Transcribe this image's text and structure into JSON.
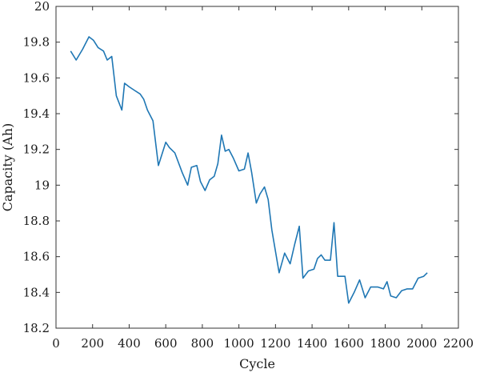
{
  "chart_data": {
    "type": "line",
    "title": "",
    "xlabel": "Cycle",
    "ylabel": "Capacity (Ah)",
    "xlim": [
      0,
      2200
    ],
    "ylim": [
      18.2,
      20
    ],
    "xticks": [
      0,
      200,
      400,
      600,
      800,
      1000,
      1200,
      1400,
      1600,
      1800,
      2000,
      2200
    ],
    "yticks": [
      18.2,
      18.4,
      18.6,
      18.8,
      19,
      19.2,
      19.4,
      19.6,
      19.8,
      20
    ],
    "ytick_labels": [
      "18.2",
      "18.4",
      "18.6",
      "18.8",
      "19",
      "19.2",
      "19.4",
      "19.6",
      "19.8",
      "20"
    ],
    "grid": false,
    "colors": {
      "line": "#1f77b4",
      "axis": "#333333"
    },
    "series": [
      {
        "x": [
          80,
          110,
          145,
          180,
          205,
          230,
          260,
          280,
          305,
          330,
          360,
          375,
          400,
          430,
          460,
          480,
          500,
          530,
          560,
          600,
          620,
          650,
          690,
          720,
          740,
          770,
          790,
          815,
          840,
          865,
          885,
          905,
          925,
          945,
          970,
          1000,
          1030,
          1050,
          1070,
          1095,
          1115,
          1140,
          1160,
          1180,
          1220,
          1250,
          1280,
          1305,
          1330,
          1350,
          1380,
          1410,
          1430,
          1450,
          1470,
          1500,
          1520,
          1540,
          1580,
          1600,
          1630,
          1660,
          1690,
          1720,
          1760,
          1790,
          1810,
          1830,
          1860,
          1890,
          1920,
          1950,
          1980,
          2010,
          2030
        ],
        "y": [
          19.75,
          19.7,
          19.76,
          19.83,
          19.81,
          19.77,
          19.75,
          19.7,
          19.72,
          19.5,
          19.42,
          19.57,
          19.55,
          19.53,
          19.51,
          19.48,
          19.42,
          19.36,
          19.11,
          19.24,
          19.21,
          19.18,
          19.07,
          19.0,
          19.1,
          19.11,
          19.02,
          18.97,
          19.03,
          19.05,
          19.12,
          19.28,
          19.19,
          19.2,
          19.15,
          19.08,
          19.09,
          19.18,
          19.07,
          18.9,
          18.95,
          18.99,
          18.92,
          18.75,
          18.51,
          18.62,
          18.56,
          18.67,
          18.77,
          18.48,
          18.52,
          18.53,
          18.59,
          18.61,
          18.58,
          18.58,
          18.79,
          18.49,
          18.49,
          18.34,
          18.4,
          18.47,
          18.37,
          18.43,
          18.43,
          18.42,
          18.46,
          18.38,
          18.37,
          18.41,
          18.42,
          18.42,
          18.48,
          18.49,
          18.51
        ]
      }
    ]
  }
}
